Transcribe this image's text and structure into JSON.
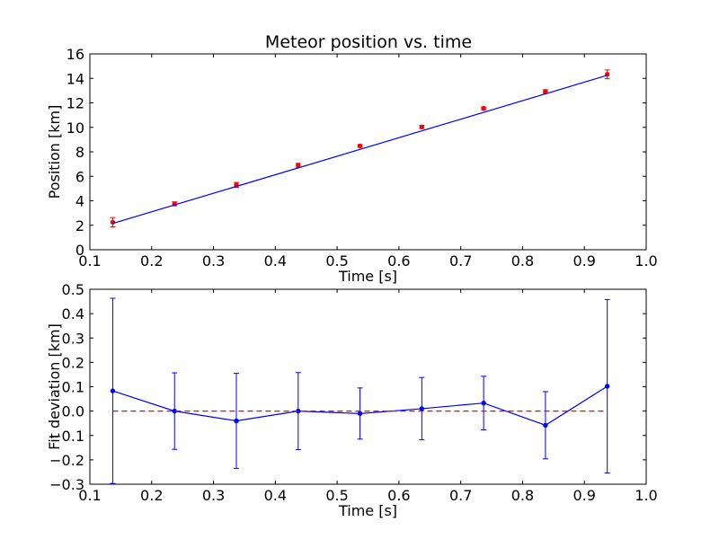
{
  "figure": {
    "title": "Meteor position vs. time"
  },
  "chart_data": [
    {
      "type": "line",
      "title": "Meteor position vs. time",
      "xlabel": "Time [s]",
      "ylabel": "Position [km]",
      "xlim": [
        0.1,
        1.0
      ],
      "ylim": [
        0,
        16
      ],
      "xticks": [
        "0.1",
        "0.2",
        "0.3",
        "0.4",
        "0.5",
        "0.6",
        "0.7",
        "0.8",
        "0.9",
        "1.0"
      ],
      "yticks": [
        "0",
        "2",
        "4",
        "6",
        "8",
        "10",
        "12",
        "14",
        "16"
      ],
      "grid": false,
      "series": [
        {
          "kind": "errorbar",
          "color": "#ff0000",
          "x": [
            0.137,
            0.237,
            0.337,
            0.437,
            0.537,
            0.637,
            0.737,
            0.837,
            0.937
          ],
          "y": [
            2.25,
            3.75,
            5.3,
            6.9,
            8.48,
            10.03,
            11.55,
            12.93,
            14.33
          ],
          "yerr": [
            0.38,
            0.16,
            0.2,
            0.16,
            0.1,
            0.13,
            0.11,
            0.14,
            0.36
          ]
        },
        {
          "kind": "line",
          "color": "#0000ff",
          "x": [
            0.137,
            0.937
          ],
          "y": [
            2.15,
            14.25
          ]
        }
      ]
    },
    {
      "type": "line",
      "title": "",
      "xlabel": "Time [s]",
      "ylabel": "Fit deviation [km]",
      "xlim": [
        0.1,
        1.0
      ],
      "ylim": [
        -0.3,
        0.5
      ],
      "xticks": [
        "0.1",
        "0.2",
        "0.3",
        "0.4",
        "0.5",
        "0.6",
        "0.7",
        "0.8",
        "0.9",
        "1.0"
      ],
      "yticks": [
        "−0.3",
        "−0.2",
        "−0.1",
        "0.0",
        "0.1",
        "0.2",
        "0.3",
        "0.4",
        "0.5"
      ],
      "grid": false,
      "series": [
        {
          "kind": "errorbar-line",
          "color": "#0000ff",
          "x": [
            0.137,
            0.237,
            0.337,
            0.437,
            0.537,
            0.637,
            0.737,
            0.837,
            0.937
          ],
          "y": [
            0.083,
            0.0,
            -0.04,
            0.0,
            -0.01,
            0.01,
            0.033,
            -0.058,
            0.102
          ],
          "yerr": [
            0.38,
            0.157,
            0.195,
            0.158,
            0.105,
            0.128,
            0.11,
            0.138,
            0.356
          ]
        },
        {
          "kind": "hline",
          "color": "#ff0000",
          "style": "dashed",
          "x": [
            0.137,
            0.937
          ],
          "y": [
            0.0,
            0.0
          ]
        }
      ]
    }
  ]
}
